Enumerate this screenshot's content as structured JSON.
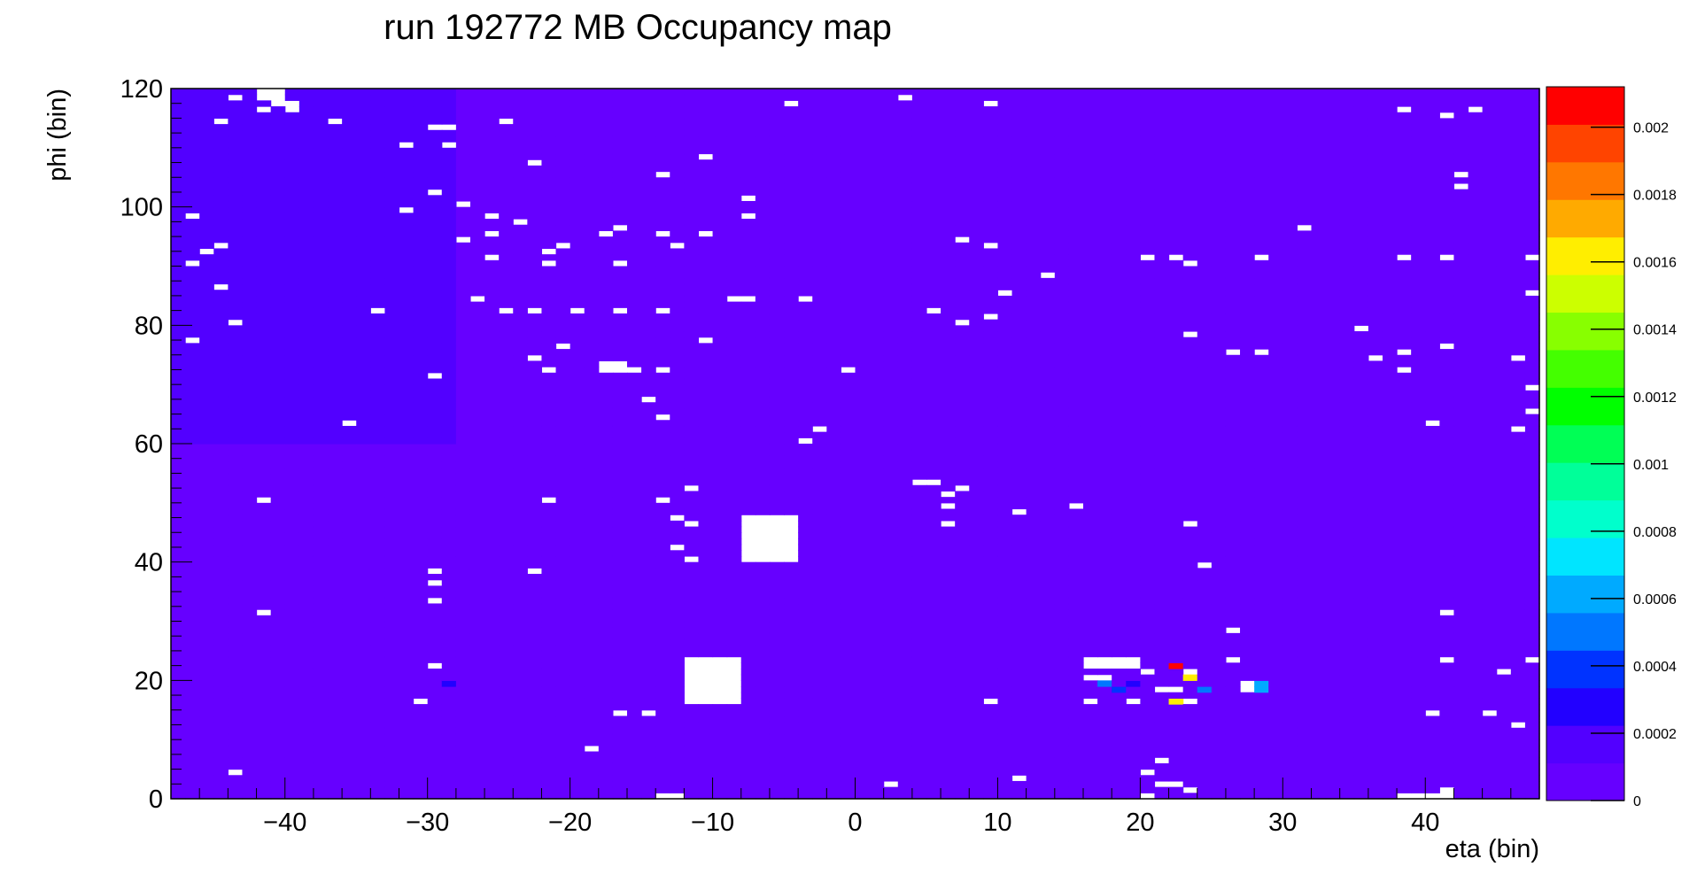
{
  "chart_data": {
    "type": "heatmap",
    "title": "run 192772 MB  Occupancy map",
    "xlabel": "eta (bin)",
    "ylabel": "phi (bin)",
    "xlim": [
      -48,
      48
    ],
    "ylim": [
      0,
      120
    ],
    "x_ticks": [
      -40,
      -30,
      -20,
      -10,
      0,
      10,
      20,
      30,
      40
    ],
    "x_tick_labels": [
      "−40",
      "−30",
      "−20",
      "−10",
      "0",
      "10",
      "20",
      "30",
      "40"
    ],
    "y_ticks": [
      0,
      20,
      40,
      60,
      80,
      100,
      120
    ],
    "y_tick_labels": [
      "0",
      "20",
      "40",
      "60",
      "80",
      "100",
      "120"
    ],
    "colorbar": {
      "min": 0,
      "max": 0.00212,
      "tick_values": [
        0,
        0.0002,
        0.0004,
        0.0006,
        0.0008,
        0.001,
        0.0012,
        0.0014,
        0.0016,
        0.0018,
        0.002
      ],
      "tick_labels": [
        "0",
        "0.0002",
        "0.0004",
        "0.0006",
        "0.0008",
        "0.001",
        "0.0012",
        "0.0014",
        "0.0016",
        "0.0018",
        "0.002"
      ],
      "colors": [
        "#6600ff",
        "#5200ff",
        "#2200ff",
        "#0033ff",
        "#0077ff",
        "#00aaff",
        "#00e5ff",
        "#00ffcc",
        "#00ff99",
        "#00ff55",
        "#00ff00",
        "#44ff00",
        "#88ff00",
        "#ccff00",
        "#ffee00",
        "#ffaa00",
        "#ff7700",
        "#ff4400",
        "#ff0000"
      ]
    },
    "background_value": 4e-05,
    "high_occupancy_region": {
      "eta": [
        -48,
        -28
      ],
      "phi": [
        60,
        120
      ],
      "value": 0.00016
    },
    "empty_regions": [
      {
        "eta": [
          -8,
          -4
        ],
        "phi": [
          40,
          48
        ]
      },
      {
        "eta": [
          -12,
          -8
        ],
        "phi": [
          16,
          24
        ]
      },
      {
        "eta": [
          16,
          20
        ],
        "phi": [
          22,
          24
        ]
      },
      {
        "eta": [
          38,
          42
        ],
        "phi": [
          0,
          1
        ]
      },
      {
        "eta": [
          -14,
          -12
        ],
        "phi": [
          0,
          1
        ]
      },
      {
        "eta": [
          -18,
          -16
        ],
        "phi": [
          72,
          74
        ]
      },
      {
        "eta": [
          -42,
          -40
        ],
        "phi": [
          118,
          120
        ]
      }
    ],
    "hot_cells": [
      {
        "eta": 22,
        "phi": 22,
        "value": 0.00212
      },
      {
        "eta": 23,
        "phi": 20,
        "value": 0.0016
      },
      {
        "eta": 22,
        "phi": 16,
        "value": 0.0016
      },
      {
        "eta": 28,
        "phi": 19,
        "value": 0.0006
      },
      {
        "eta": 28,
        "phi": 18,
        "value": 0.0006
      },
      {
        "eta": 17,
        "phi": 19,
        "value": 0.0005
      },
      {
        "eta": 24,
        "phi": 18,
        "value": 0.0005
      },
      {
        "eta": 18,
        "phi": 18,
        "value": 0.0004
      },
      {
        "eta": 19,
        "phi": 19,
        "value": 0.0003
      },
      {
        "eta": -30,
        "phi": 22,
        "value": 0.0003
      },
      {
        "eta": -29,
        "phi": 19,
        "value": 0.0003
      }
    ],
    "white_cells": [
      [
        -42,
        118
      ],
      [
        -41,
        118
      ],
      [
        -41,
        117
      ],
      [
        -40,
        117
      ],
      [
        -44,
        118
      ],
      [
        -42,
        116
      ],
      [
        -45,
        114
      ],
      [
        -30,
        113
      ],
      [
        -29,
        113
      ],
      [
        -32,
        110
      ],
      [
        -29,
        110
      ],
      [
        -40,
        116
      ],
      [
        -37,
        114
      ],
      [
        -25,
        114
      ],
      [
        -23,
        107
      ],
      [
        -14,
        105
      ],
      [
        -11,
        108
      ],
      [
        -8,
        101
      ],
      [
        -8,
        98
      ],
      [
        -32,
        99
      ],
      [
        -28,
        100
      ],
      [
        -24,
        97
      ],
      [
        -26,
        98
      ],
      [
        -30,
        102
      ],
      [
        -47,
        98
      ],
      [
        -46,
        92
      ],
      [
        -47,
        90
      ],
      [
        -45,
        93
      ],
      [
        -45,
        86
      ],
      [
        -44,
        80
      ],
      [
        -47,
        77
      ],
      [
        -28,
        94
      ],
      [
        -26,
        95
      ],
      [
        -22,
        90
      ],
      [
        -22,
        92
      ],
      [
        -21,
        93
      ],
      [
        -18,
        95
      ],
      [
        -17,
        96
      ],
      [
        -17,
        90
      ],
      [
        -14,
        95
      ],
      [
        -13,
        93
      ],
      [
        -27,
        84
      ],
      [
        -26,
        91
      ],
      [
        -34,
        82
      ],
      [
        -25,
        82
      ],
      [
        -23,
        82
      ],
      [
        -20,
        82
      ],
      [
        -17,
        82
      ],
      [
        -14,
        82
      ],
      [
        -23,
        74
      ],
      [
        -21,
        76
      ],
      [
        -22,
        72
      ],
      [
        -17,
        72
      ],
      [
        -16,
        72
      ],
      [
        -14,
        72
      ],
      [
        -30,
        71
      ],
      [
        -15,
        67
      ],
      [
        -14,
        64
      ],
      [
        -11,
        95
      ],
      [
        -8,
        84
      ],
      [
        -4,
        84
      ],
      [
        -11,
        77
      ],
      [
        -3,
        62
      ],
      [
        -4,
        60
      ],
      [
        -1,
        72
      ],
      [
        -9,
        84
      ],
      [
        -22,
        50
      ],
      [
        -14,
        50
      ],
      [
        -12,
        52
      ],
      [
        -13,
        47
      ],
      [
        -12,
        46
      ],
      [
        -13,
        42
      ],
      [
        -42,
        50
      ],
      [
        -36,
        63
      ],
      [
        -23,
        38
      ],
      [
        -30,
        38
      ],
      [
        -30,
        36
      ],
      [
        -30,
        33
      ],
      [
        -42,
        31
      ],
      [
        -30,
        22
      ],
      [
        -31,
        16
      ],
      [
        -17,
        14
      ],
      [
        -15,
        14
      ],
      [
        -19,
        8
      ],
      [
        -44,
        4
      ],
      [
        2,
        2
      ],
      [
        4,
        53
      ],
      [
        5,
        53
      ],
      [
        6,
        51
      ],
      [
        7,
        52
      ],
      [
        6,
        49
      ],
      [
        6,
        46
      ],
      [
        9,
        16
      ],
      [
        7,
        94
      ],
      [
        9,
        93
      ],
      [
        10,
        85
      ],
      [
        9,
        81
      ],
      [
        7,
        80
      ],
      [
        5,
        82
      ],
      [
        -5,
        117
      ],
      [
        3,
        118
      ],
      [
        9,
        117
      ],
      [
        11,
        48
      ],
      [
        13,
        88
      ],
      [
        15,
        49
      ],
      [
        11,
        3
      ],
      [
        16,
        16
      ],
      [
        16,
        20
      ],
      [
        17,
        20
      ],
      [
        19,
        16
      ],
      [
        20,
        21
      ],
      [
        21,
        6
      ],
      [
        20,
        4
      ],
      [
        21,
        2
      ],
      [
        22,
        2
      ],
      [
        20,
        0
      ],
      [
        23,
        1
      ],
      [
        23,
        16
      ],
      [
        23,
        21
      ],
      [
        22,
        18
      ],
      [
        21,
        18
      ],
      [
        23,
        46
      ],
      [
        20,
        91
      ],
      [
        22,
        91
      ],
      [
        23,
        90
      ],
      [
        23,
        78
      ],
      [
        26,
        75
      ],
      [
        28,
        75
      ],
      [
        24,
        39
      ],
      [
        26,
        28
      ],
      [
        26,
        23
      ],
      [
        27,
        18
      ],
      [
        27,
        19
      ],
      [
        28,
        91
      ],
      [
        31,
        96
      ],
      [
        38,
        91
      ],
      [
        38,
        75
      ],
      [
        35,
        79
      ],
      [
        36,
        74
      ],
      [
        38,
        72
      ],
      [
        41,
        91
      ],
      [
        41,
        76
      ],
      [
        38,
        116
      ],
      [
        41,
        115
      ],
      [
        43,
        116
      ],
      [
        42,
        105
      ],
      [
        42,
        103
      ],
      [
        40,
        63
      ],
      [
        41,
        31
      ],
      [
        41,
        23
      ],
      [
        40,
        14
      ],
      [
        44,
        14
      ],
      [
        45,
        21
      ],
      [
        46,
        12
      ],
      [
        47,
        91
      ],
      [
        47,
        85
      ],
      [
        47,
        69
      ],
      [
        47,
        65
      ],
      [
        46,
        74
      ],
      [
        47,
        23
      ],
      [
        46,
        62
      ],
      [
        -12,
        40
      ],
      [
        40,
        0
      ],
      [
        41,
        1
      ]
    ]
  }
}
